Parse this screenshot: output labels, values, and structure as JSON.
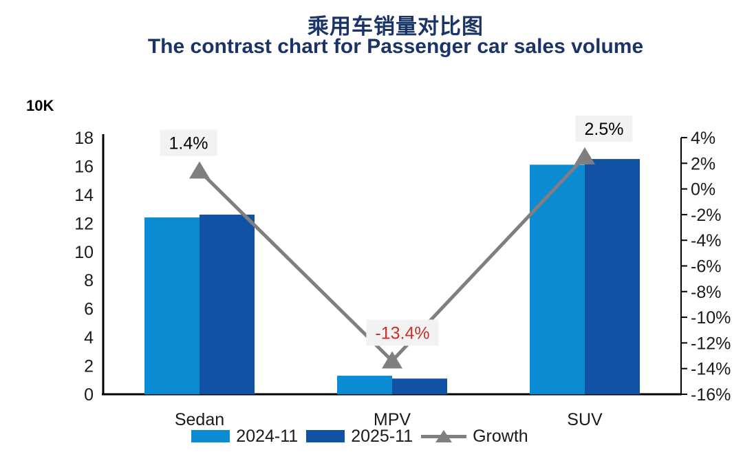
{
  "title": {
    "line1_zh": "乘用车销量对比图",
    "line2_en": "The contrast chart for Passenger car sales volume"
  },
  "colors": {
    "title": "#1b3467",
    "bar_2024": "#0a8bd2",
    "bar_2025": "#1152a5",
    "growth_line": "#7f7f7f",
    "axis": "#000000",
    "tick_text": "#1a1a1a",
    "label_bg": "#f2f2f2",
    "positive_label_text": "#000000",
    "negative_label_text": "#c9302c"
  },
  "chart_data": {
    "type": "bar",
    "subtype": "grouped bars with secondary-axis line",
    "categories": [
      "Sedan",
      "MPV",
      "SUV"
    ],
    "series": [
      {
        "name": "2024-11",
        "type": "bar",
        "color": "#0a8bd2",
        "values": [
          12.4,
          1.3,
          16.1
        ]
      },
      {
        "name": "2025-11",
        "type": "bar",
        "color": "#1152a5",
        "values": [
          12.6,
          1.1,
          16.5
        ]
      },
      {
        "name": "Growth",
        "type": "line",
        "color": "#7f7f7f",
        "marker": "triangle-up",
        "values": [
          1.4,
          -13.4,
          2.5
        ],
        "data_labels": [
          "1.4%",
          "-13.4%",
          "2.5%"
        ],
        "data_label_colors": [
          "#000000",
          "#c9302c",
          "#000000"
        ]
      }
    ],
    "left_axis": {
      "unit": "10K",
      "min": 0,
      "max": 18,
      "step": 2,
      "tick_labels": [
        "0",
        "2",
        "4",
        "6",
        "8",
        "10",
        "12",
        "14",
        "16",
        "18"
      ]
    },
    "right_axis": {
      "min": -16,
      "max": 4,
      "step": 2,
      "tick_labels": [
        "-16%",
        "-14%",
        "-12%",
        "-10%",
        "-8%",
        "-6%",
        "-4%",
        "-2%",
        "0%",
        "2%",
        "4%"
      ]
    },
    "legend": {
      "position": "bottom",
      "entries": [
        "2024-11",
        "2025-11",
        "Growth"
      ]
    },
    "grid": false
  }
}
